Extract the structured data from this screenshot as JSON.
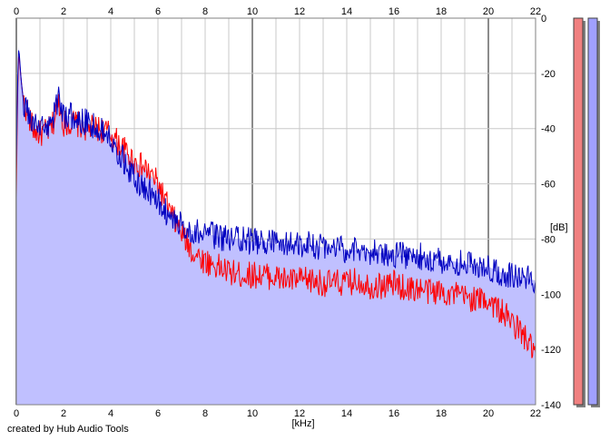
{
  "credit": "created by Hub Audio Tools",
  "colors": {
    "background": "#ffffff",
    "grid_minor": "#c8c8c8",
    "grid_major": "#8c8c8c",
    "area_fill": "#c0c0ff",
    "left_channel": "#ff0000",
    "right_channel": "#0000c0",
    "level_left": "#f08080",
    "level_right": "#a0a0ff"
  },
  "chart_data": {
    "type": "line",
    "title": "",
    "xlabel": "[kHz]",
    "ylabel": "[dB]",
    "xlim": [
      0,
      22
    ],
    "ylim": [
      -140,
      0
    ],
    "x_ticks": [
      "0",
      "2",
      "4",
      "6",
      "8",
      "10",
      "12",
      "14",
      "16",
      "18",
      "20",
      "22"
    ],
    "y_ticks": [
      "0",
      "-20",
      "-40",
      "-60",
      "-80",
      "-100",
      "-120",
      "-140"
    ],
    "grid": true,
    "series": [
      {
        "color": "#ff0000",
        "x": [
          0,
          0.05,
          0.1,
          0.2,
          0.3,
          0.5,
          0.7,
          1,
          1.5,
          1.8,
          2,
          2.5,
          3,
          3.5,
          4,
          4.3,
          4.6,
          5,
          5.5,
          6,
          6.5,
          7,
          7.5,
          8,
          8.5,
          9,
          9.5,
          10,
          10.5,
          11,
          11.5,
          12,
          12.5,
          13,
          13.5,
          14,
          14.5,
          15,
          15.5,
          16,
          16.5,
          17,
          17.5,
          18,
          18.5,
          19,
          19.5,
          20,
          20.5,
          21,
          21.5,
          22
        ],
        "y": [
          -65,
          -30,
          -12,
          -22,
          -30,
          -35,
          -40,
          -42,
          -40,
          -30,
          -38,
          -38,
          -40,
          -40,
          -42,
          -45,
          -48,
          -52,
          -55,
          -60,
          -70,
          -78,
          -85,
          -88,
          -90,
          -92,
          -93,
          -93,
          -93,
          -94,
          -95,
          -95,
          -95,
          -96,
          -96,
          -96,
          -95,
          -97,
          -97,
          -96,
          -98,
          -98,
          -99,
          -99,
          -100,
          -101,
          -102,
          -102,
          -106,
          -110,
          -115,
          -122
        ]
      },
      {
        "color": "#0000c0",
        "x": [
          0,
          0.05,
          0.1,
          0.2,
          0.3,
          0.5,
          0.7,
          1,
          1.5,
          1.8,
          2,
          2.5,
          3,
          3.5,
          4,
          4.3,
          4.6,
          5,
          5.5,
          6,
          6.5,
          7,
          7.5,
          8,
          8.5,
          9,
          9.5,
          10,
          10.5,
          11,
          11.5,
          12,
          12.5,
          13,
          13.5,
          14,
          14.5,
          15,
          15.5,
          16,
          16.5,
          17,
          17.5,
          18,
          18.5,
          19,
          19.5,
          20,
          20.5,
          21,
          21.5,
          22
        ],
        "y": [
          -55,
          -25,
          -10,
          -22,
          -30,
          -35,
          -38,
          -40,
          -38,
          -28,
          -35,
          -36,
          -38,
          -40,
          -42,
          -48,
          -52,
          -58,
          -62,
          -66,
          -72,
          -75,
          -77,
          -78,
          -79,
          -80,
          -80,
          -81,
          -81,
          -82,
          -82,
          -82,
          -82,
          -83,
          -83,
          -84,
          -84,
          -85,
          -85,
          -86,
          -86,
          -86,
          -87,
          -88,
          -88,
          -89,
          -90,
          -90,
          -92,
          -93,
          -94,
          -95
        ]
      }
    ],
    "level_meters": [
      {
        "channel": "left",
        "color": "#f08080",
        "level_db": 0
      },
      {
        "channel": "right",
        "color": "#a0a0ff",
        "level_db": 0
      }
    ]
  }
}
